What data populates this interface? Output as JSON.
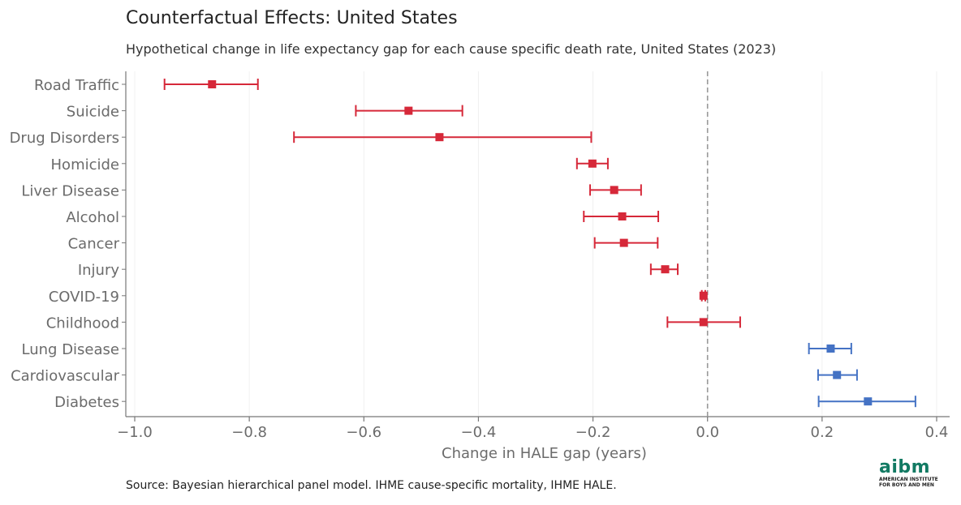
{
  "title": "Counterfactual Effects: United States",
  "subtitle": "Hypothetical change in life expectancy gap for each cause specific death rate, United States (2023)",
  "source": "Source: Bayesian hierarchical panel model. IHME cause-specific mortality, IHME HALE.",
  "logo": {
    "word": "aibm",
    "line1": "AMERICAN INSTITUTE",
    "line2": "FOR BOYS AND MEN"
  },
  "colors": {
    "negative": "#d62839",
    "positive": "#4472c4",
    "reference": "#999999",
    "axis": "#777777",
    "text": "#6b6b6b"
  },
  "chart_data": {
    "type": "scatter",
    "orientation": "horizontal-point-with-error-bars",
    "xlabel": "Change in HALE gap (years)",
    "xlim": [
      -1.02,
      0.44
    ],
    "xticks": [
      -1.0,
      -0.8,
      -0.6,
      -0.4,
      -0.2,
      0.0,
      0.2,
      0.4
    ],
    "xtick_labels": [
      "−1.0",
      "−0.8",
      "−0.6",
      "−0.4",
      "−0.2",
      "0.0",
      "0.2",
      "0.4"
    ],
    "reference_line": 0.0,
    "grid": "vertical",
    "series": [
      {
        "category": "Road Traffic",
        "estimate": -0.865,
        "low": -0.948,
        "high": -0.785
      },
      {
        "category": "Suicide",
        "estimate": -0.522,
        "low": -0.614,
        "high": -0.428
      },
      {
        "category": "Drug Disorders",
        "estimate": -0.468,
        "low": -0.722,
        "high": -0.203
      },
      {
        "category": "Homicide",
        "estimate": -0.201,
        "low": -0.228,
        "high": -0.174
      },
      {
        "category": "Liver Disease",
        "estimate": -0.163,
        "low": -0.205,
        "high": -0.116
      },
      {
        "category": "Alcohol",
        "estimate": -0.149,
        "low": -0.216,
        "high": -0.086
      },
      {
        "category": "Cancer",
        "estimate": -0.146,
        "low": -0.197,
        "high": -0.087
      },
      {
        "category": "Injury",
        "estimate": -0.074,
        "low": -0.099,
        "high": -0.052
      },
      {
        "category": "COVID-19",
        "estimate": -0.007,
        "low": -0.01,
        "high": -0.004
      },
      {
        "category": "Childhood",
        "estimate": -0.007,
        "low": -0.07,
        "high": 0.057
      },
      {
        "category": "Lung Disease",
        "estimate": 0.215,
        "low": 0.177,
        "high": 0.251
      },
      {
        "category": "Cardiovascular",
        "estimate": 0.226,
        "low": 0.193,
        "high": 0.261
      },
      {
        "category": "Diabetes",
        "estimate": 0.28,
        "low": 0.194,
        "high": 0.363
      }
    ]
  }
}
